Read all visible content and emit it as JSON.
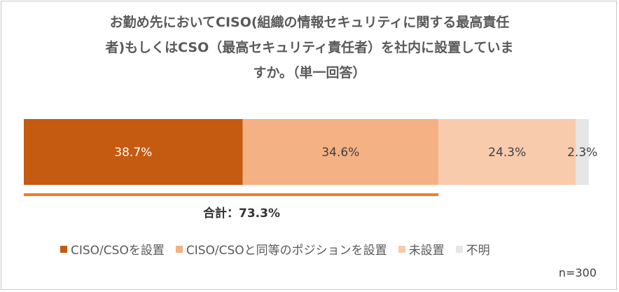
{
  "chart_data": {
    "type": "bar",
    "orientation": "horizontal-stacked-100",
    "title_lines": [
      "お勤め先においてCISO(組織の情報セキュリティに関する最高責任",
      "者)もしくはCSO（最高セキュリティ責任者）を社内に設置していま",
      "すか。（単一回答）"
    ],
    "series": [
      {
        "name": "CISO/CSOを設置",
        "value": 38.7,
        "label": "38.7%",
        "color": "#c55a11",
        "label_color": "#ffffff"
      },
      {
        "name": "CISO/CSOと同等のポジションを設置",
        "value": 34.6,
        "label": "34.6%",
        "color": "#f4b183",
        "label_color": "#404040"
      },
      {
        "name": "未設置",
        "value": 24.3,
        "label": "24.3%",
        "color": "#f8cbad",
        "label_color": "#404040"
      },
      {
        "name": "不明",
        "value": 2.3,
        "label": "2.3%",
        "color": "#e6e6e6",
        "label_color": "#404040"
      }
    ],
    "total_bracket": {
      "label": "合計：73.3%",
      "value": 73.3,
      "color": "#ed7d31"
    },
    "sample_size": "n=300",
    "legend_position": "bottom"
  }
}
